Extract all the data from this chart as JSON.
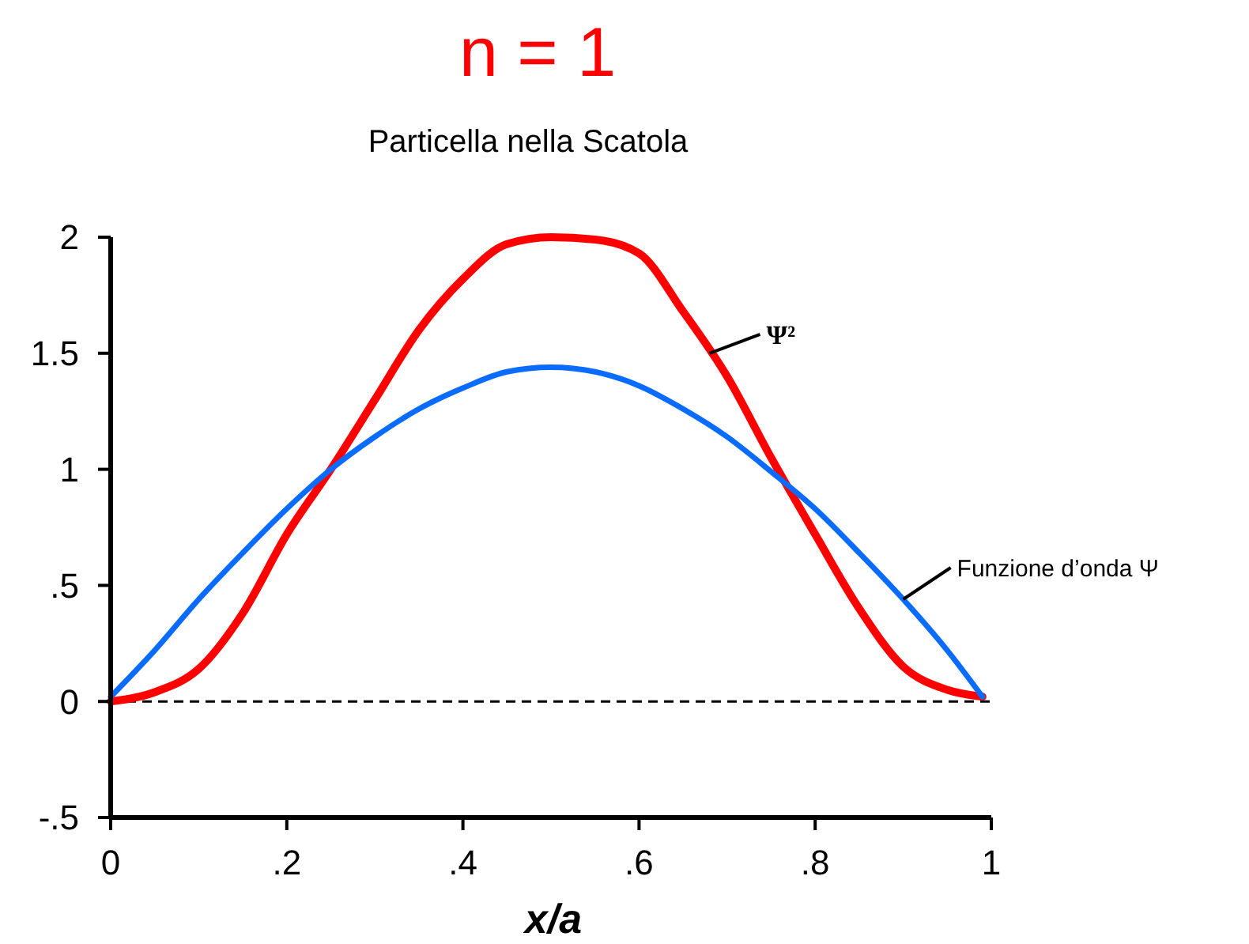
{
  "chart_data": {
    "type": "line",
    "title": "n = 1",
    "subtitle": "Particella nella Scatola",
    "xlabel": "x/a",
    "x": [
      0,
      0.05,
      0.1,
      0.15,
      0.2,
      0.25,
      0.3,
      0.35,
      0.4,
      0.45,
      0.5,
      0.55,
      0.6,
      0.65,
      0.7,
      0.75,
      0.8,
      0.85,
      0.9,
      0.95,
      0.99
    ],
    "series": [
      {
        "color": "#ff0000",
        "values": [
          0,
          0.04,
          0.14,
          0.38,
          0.72,
          1.0,
          1.3,
          1.6,
          1.82,
          1.97,
          2.0,
          1.99,
          1.93,
          1.68,
          1.4,
          1.05,
          0.72,
          0.4,
          0.15,
          0.05,
          0.02
        ]
      },
      {
        "color": "#0a6cff",
        "values": [
          0.02,
          0.22,
          0.44,
          0.64,
          0.83,
          1.0,
          1.14,
          1.26,
          1.35,
          1.42,
          1.44,
          1.42,
          1.36,
          1.26,
          1.14,
          0.99,
          0.83,
          0.64,
          0.44,
          0.22,
          0.02
        ]
      }
    ],
    "xlim": [
      0,
      1
    ],
    "ylim": [
      -0.5,
      2
    ],
    "xticks": [
      0,
      {
        "value": 0.2,
        "label": ".2"
      },
      {
        "value": 0.4,
        "label": ".4"
      },
      {
        "value": 0.6,
        "label": ".6"
      },
      {
        "value": 0.8,
        "label": ".8"
      },
      1
    ],
    "yticks": [
      {
        "value": -0.5,
        "label": "-.5"
      },
      0,
      {
        "value": 0.5,
        "label": ".5"
      },
      1,
      1.5,
      2
    ],
    "ref_lines": [
      {
        "axis": "y",
        "value": 0,
        "line_style": "dashed",
        "color": "#000000"
      }
    ],
    "annotations": [
      {
        "text": "Ψ²",
        "x": 0.68,
        "y": 1.5
      },
      {
        "text": "Funzione d’onda Ψ",
        "x": 0.9,
        "y": 0.44
      }
    ],
    "grid": false,
    "marker": "none",
    "line_style": "solid"
  }
}
